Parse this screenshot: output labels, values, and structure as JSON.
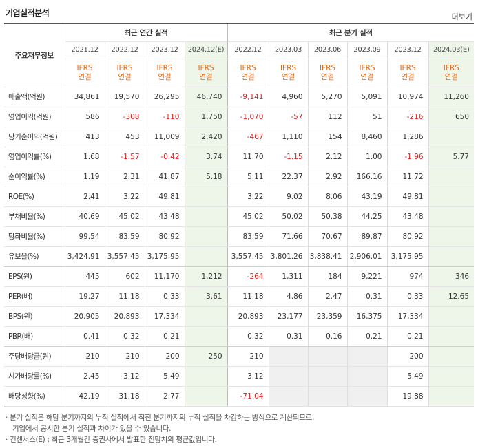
{
  "header": {
    "title": "기업실적분석",
    "more_label": "더보기"
  },
  "table": {
    "corner_label": "주요재무정보",
    "group_annual": "최근 연간 실적",
    "group_quarter": "최근 분기 실적",
    "periods": [
      "2021.12",
      "2022.12",
      "2023.12",
      "2024.12(E)",
      "2022.12",
      "2023.03",
      "2023.06",
      "2023.09",
      "2023.12",
      "2024.03(E)"
    ],
    "ifrs_top": "IFRS",
    "ifrs_bottom": "연결",
    "rows": [
      {
        "label": "매출액(억원)",
        "values": [
          "34,861",
          "19,570",
          "26,295",
          "46,740",
          "-9,141",
          "4,960",
          "5,270",
          "5,091",
          "10,974",
          "11,260"
        ]
      },
      {
        "label": "영업이익(억원)",
        "values": [
          "586",
          "-308",
          "-110",
          "1,750",
          "-1,070",
          "-57",
          "112",
          "51",
          "-216",
          "650"
        ]
      },
      {
        "label": "당기순이익(억원)",
        "values": [
          "413",
          "453",
          "11,009",
          "2,420",
          "-467",
          "1,110",
          "154",
          "8,460",
          "1,286",
          ""
        ]
      },
      {
        "label": "영업이익률(%)",
        "values": [
          "1.68",
          "-1.57",
          "-0.42",
          "3.74",
          "11.70",
          "-1.15",
          "2.12",
          "1.00",
          "-1.96",
          "5.77"
        ]
      },
      {
        "label": "순이익률(%)",
        "values": [
          "1.19",
          "2.31",
          "41.87",
          "5.18",
          "5.11",
          "22.37",
          "2.92",
          "166.16",
          "11.72",
          ""
        ]
      },
      {
        "label": "ROE(%)",
        "values": [
          "2.41",
          "3.22",
          "49.81",
          "",
          "3.22",
          "9.02",
          "8.06",
          "43.19",
          "49.81",
          ""
        ]
      },
      {
        "label": "부채비율(%)",
        "values": [
          "40.69",
          "45.02",
          "43.48",
          "",
          "45.02",
          "50.02",
          "50.38",
          "44.25",
          "43.48",
          ""
        ]
      },
      {
        "label": "당좌비율(%)",
        "values": [
          "99.54",
          "83.59",
          "80.92",
          "",
          "83.59",
          "71.66",
          "70.67",
          "89.87",
          "80.92",
          ""
        ]
      },
      {
        "label": "유보율(%)",
        "values": [
          "3,424.91",
          "3,557.45",
          "3,175.95",
          "",
          "3,557.45",
          "3,801.26",
          "3,838.41",
          "2,906.01",
          "3,175.95",
          ""
        ]
      },
      {
        "label": "EPS(원)",
        "values": [
          "445",
          "602",
          "11,170",
          "1,212",
          "-264",
          "1,311",
          "184",
          "9,221",
          "974",
          "346"
        ]
      },
      {
        "label": "PER(배)",
        "values": [
          "19.27",
          "11.18",
          "0.33",
          "3.61",
          "11.18",
          "4.86",
          "2.47",
          "0.31",
          "0.33",
          "12.65"
        ]
      },
      {
        "label": "BPS(원)",
        "values": [
          "20,905",
          "20,893",
          "17,334",
          "",
          "20,893",
          "23,177",
          "23,359",
          "16,375",
          "17,334",
          ""
        ]
      },
      {
        "label": "PBR(배)",
        "values": [
          "0.41",
          "0.32",
          "0.21",
          "",
          "0.32",
          "0.31",
          "0.16",
          "0.21",
          "0.21",
          ""
        ]
      },
      {
        "label": "주당배당금(원)",
        "values": [
          "210",
          "210",
          "200",
          "250",
          "210",
          "",
          "",
          "",
          "200",
          ""
        ]
      },
      {
        "label": "시가배당률(%)",
        "values": [
          "2.45",
          "3.12",
          "5.49",
          "",
          "3.12",
          "",
          "",
          "",
          "5.49",
          ""
        ]
      },
      {
        "label": "배당성향(%)",
        "values": [
          "42.19",
          "31.18",
          "2.77",
          "",
          "-71.04",
          "",
          "",
          "",
          "19.88",
          ""
        ]
      }
    ]
  },
  "notes": {
    "line1": "· 분기 실적은 해당 분기까지의 누적 실적에서 직전 분기까지의 누적 실적을 차감하는 방식으로 계산되므로,",
    "line2": "기업에서 공시한 분기 실적과 차이가 있을 수 있습니다.",
    "line3": "· 컨센서스(E) : 최근 3개월간 증권사에서 발표한 전망치의 평균값입니다."
  },
  "colors": {
    "negative": "#e02020",
    "ifrs": "#e26a1c",
    "estimate_bg": "#eef6ea"
  }
}
